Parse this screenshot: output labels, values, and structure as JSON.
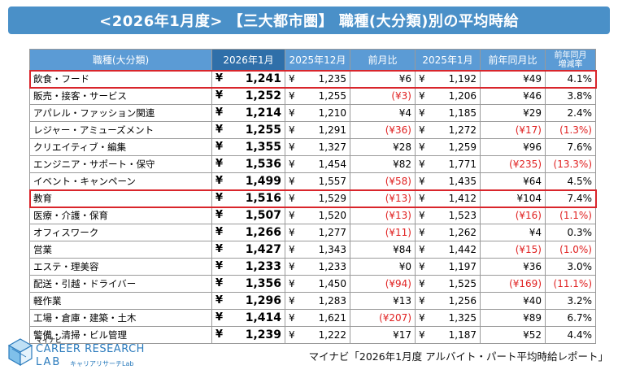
{
  "title": "<2026年1月度> 【三大都市圏】 職種(大分類)別の平均時給",
  "headers": {
    "category": "職種(大分類)",
    "jan2026": "2026年1月",
    "dec2025": "2025年12月",
    "mom": "前月比",
    "jan2025": "2025年1月",
    "yoy": "前年同月比",
    "yoy_rate_line1": "前年同月",
    "yoy_rate_line2": "増減率"
  },
  "yen": "¥",
  "rows": [
    {
      "cat": "飲食・フード",
      "jan2026": "1,241",
      "dec2025": "1,235",
      "mom": "¥6",
      "mom_neg": false,
      "jan2025": "1,192",
      "yoy": "¥49",
      "yoy_neg": false,
      "rate": "4.1%",
      "rate_neg": false
    },
    {
      "cat": "販売・接客・サービス",
      "jan2026": "1,252",
      "dec2025": "1,255",
      "mom": "(¥3)",
      "mom_neg": true,
      "jan2025": "1,206",
      "yoy": "¥46",
      "yoy_neg": false,
      "rate": "3.8%",
      "rate_neg": false
    },
    {
      "cat": "アパレル・ファッション関連",
      "jan2026": "1,214",
      "dec2025": "1,210",
      "mom": "¥4",
      "mom_neg": false,
      "jan2025": "1,185",
      "yoy": "¥29",
      "yoy_neg": false,
      "rate": "2.4%",
      "rate_neg": false
    },
    {
      "cat": "レジャー・アミューズメント",
      "jan2026": "1,255",
      "dec2025": "1,291",
      "mom": "(¥36)",
      "mom_neg": true,
      "jan2025": "1,272",
      "yoy": "(¥17)",
      "yoy_neg": true,
      "rate": "(1.3%)",
      "rate_neg": true
    },
    {
      "cat": "クリエイティブ・編集",
      "jan2026": "1,355",
      "dec2025": "1,327",
      "mom": "¥28",
      "mom_neg": false,
      "jan2025": "1,259",
      "yoy": "¥96",
      "yoy_neg": false,
      "rate": "7.6%",
      "rate_neg": false
    },
    {
      "cat": "エンジニア・サポート・保守",
      "jan2026": "1,536",
      "dec2025": "1,454",
      "mom": "¥82",
      "mom_neg": false,
      "jan2025": "1,771",
      "yoy": "(¥235)",
      "yoy_neg": true,
      "rate": "(13.3%)",
      "rate_neg": true
    },
    {
      "cat": "イベント・キャンペーン",
      "jan2026": "1,499",
      "dec2025": "1,557",
      "mom": "(¥58)",
      "mom_neg": true,
      "jan2025": "1,435",
      "yoy": "¥64",
      "yoy_neg": false,
      "rate": "4.5%",
      "rate_neg": false
    },
    {
      "cat": "教育",
      "jan2026": "1,516",
      "dec2025": "1,529",
      "mom": "(¥13)",
      "mom_neg": true,
      "jan2025": "1,412",
      "yoy": "¥104",
      "yoy_neg": false,
      "rate": "7.4%",
      "rate_neg": false
    },
    {
      "cat": "医療・介護・保育",
      "jan2026": "1,507",
      "dec2025": "1,520",
      "mom": "(¥13)",
      "mom_neg": true,
      "jan2025": "1,523",
      "yoy": "(¥16)",
      "yoy_neg": true,
      "rate": "(1.1%)",
      "rate_neg": true
    },
    {
      "cat": "オフィスワーク",
      "jan2026": "1,266",
      "dec2025": "1,277",
      "mom": "(¥11)",
      "mom_neg": true,
      "jan2025": "1,262",
      "yoy": "¥4",
      "yoy_neg": false,
      "rate": "0.3%",
      "rate_neg": false
    },
    {
      "cat": "営業",
      "jan2026": "1,427",
      "dec2025": "1,343",
      "mom": "¥84",
      "mom_neg": false,
      "jan2025": "1,442",
      "yoy": "(¥15)",
      "yoy_neg": true,
      "rate": "(1.0%)",
      "rate_neg": true
    },
    {
      "cat": "エステ・理美容",
      "jan2026": "1,233",
      "dec2025": "1,233",
      "mom": "¥0",
      "mom_neg": false,
      "jan2025": "1,197",
      "yoy": "¥36",
      "yoy_neg": false,
      "rate": "3.0%",
      "rate_neg": false
    },
    {
      "cat": "配送・引越・ドライバー",
      "jan2026": "1,356",
      "dec2025": "1,450",
      "mom": "(¥94)",
      "mom_neg": true,
      "jan2025": "1,525",
      "yoy": "(¥169)",
      "yoy_neg": true,
      "rate": "(11.1%)",
      "rate_neg": true
    },
    {
      "cat": "軽作業",
      "jan2026": "1,296",
      "dec2025": "1,283",
      "mom": "¥13",
      "mom_neg": false,
      "jan2025": "1,256",
      "yoy": "¥40",
      "yoy_neg": false,
      "rate": "3.2%",
      "rate_neg": false
    },
    {
      "cat": "工場・倉庫・建築・土木",
      "jan2026": "1,414",
      "dec2025": "1,621",
      "mom": "(¥207)",
      "mom_neg": true,
      "jan2025": "1,325",
      "yoy": "¥89",
      "yoy_neg": false,
      "rate": "6.7%",
      "rate_neg": false
    },
    {
      "cat": "警備・清掃・ビル管理",
      "jan2026": "1,239",
      "dec2025": "1,222",
      "mom": "¥17",
      "mom_neg": false,
      "jan2025": "1,187",
      "yoy": "¥52",
      "yoy_neg": false,
      "rate": "4.4%",
      "rate_neg": false
    }
  ],
  "highlighted_rows": [
    0,
    7
  ],
  "logo": {
    "brand_small": "マイナビ",
    "line1": "CAREER RESEARCH",
    "line2": "LAB",
    "kana": "キャリアリサーチLab"
  },
  "source": "マイナビ「2026年1月度 アルバイト・パート平均時給レポート」",
  "colors": {
    "title_bg": "#4a90c8",
    "header_bg": "#5b9bd5",
    "header_highlight_bg": "#2f6fa9",
    "negative": "#e02020",
    "highlight_border": "#d9252b",
    "logo_blue": "#2b7bbd"
  }
}
